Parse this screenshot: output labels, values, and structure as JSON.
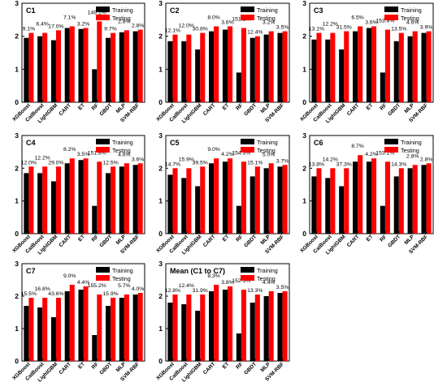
{
  "colors": {
    "training": "#000000",
    "testing": "#ff0000"
  },
  "chart_data": [
    {
      "type": "bar",
      "title": "C1",
      "categories": [
        "XGBoost",
        "CatBoost",
        "LightGBM",
        "CART",
        "ET",
        "RF",
        "GBDT",
        "MLP",
        "SVM-RBF"
      ],
      "series": [
        {
          "name": "Training",
          "values": [
            1.95,
            2.0,
            1.88,
            2.25,
            2.22,
            1.0,
            1.95,
            2.12,
            2.15
          ]
        },
        {
          "name": "Testing",
          "values": [
            2.1,
            2.1,
            2.18,
            2.3,
            2.25,
            2.45,
            2.1,
            2.18,
            2.2
          ]
        }
      ],
      "labels": [
        "9.1%",
        "6.4%",
        "17.0%",
        "7.1%",
        "3.2%",
        "149.1%",
        "9.7%",
        "2.8%",
        "2.8%"
      ],
      "ylim": [
        0,
        3
      ],
      "yticks": [
        0,
        1,
        2,
        3
      ],
      "legend": "top-right"
    },
    {
      "type": "bar",
      "title": "C2",
      "categories": [
        "XGBoost",
        "CatBoost",
        "LightGBM",
        "CART",
        "ET",
        "RF",
        "GBDT",
        "MLP",
        "SVM-RBF"
      ],
      "series": [
        {
          "name": "Training",
          "values": [
            1.85,
            1.85,
            1.6,
            2.15,
            2.2,
            0.9,
            1.95,
            2.05,
            2.1
          ]
        },
        {
          "name": "Testing",
          "values": [
            2.05,
            2.05,
            2.1,
            2.3,
            2.3,
            2.25,
            2.0,
            2.15,
            2.15
          ]
        }
      ],
      "labels": [
        "12.1%",
        "12.0%",
        "30.8%",
        "8.0%",
        "3.6%",
        "151.1%",
        "12.4%",
        "3.2%",
        "3.5%"
      ],
      "ylim": [
        0,
        3
      ],
      "yticks": [
        0,
        1,
        2,
        3
      ],
      "legend": "top-right"
    },
    {
      "type": "bar",
      "title": "C3",
      "categories": [
        "XGBoost",
        "CatBoost",
        "LightGBM",
        "CART",
        "ET",
        "RF",
        "GBDT",
        "MLP",
        "SVM-RBF"
      ],
      "series": [
        {
          "name": "Training",
          "values": [
            1.9,
            1.9,
            1.6,
            2.15,
            2.25,
            0.9,
            1.85,
            2.0,
            2.1
          ]
        },
        {
          "name": "Testing",
          "values": [
            2.1,
            2.1,
            2.15,
            2.3,
            2.3,
            2.2,
            2.1,
            2.15,
            2.15
          ]
        }
      ],
      "labels": [
        "13.1%",
        "12.2%",
        "31.5%",
        "6.5%",
        "3.6%",
        "153.8%",
        "13.5%",
        "4.6%",
        "3.9%"
      ],
      "ylim": [
        0,
        3
      ],
      "yticks": [
        0,
        1,
        2,
        3
      ],
      "legend": "top-right"
    },
    {
      "type": "bar",
      "title": "C4",
      "categories": [
        "XGBoost",
        "CatBoost",
        "LightGBM",
        "CART",
        "ET",
        "RF",
        "GBDT",
        "MLP",
        "SVM-RBF"
      ],
      "series": [
        {
          "name": "Training",
          "values": [
            1.85,
            1.85,
            1.6,
            2.15,
            2.25,
            0.85,
            1.85,
            2.05,
            2.1
          ]
        },
        {
          "name": "Testing",
          "values": [
            2.05,
            2.05,
            2.05,
            2.3,
            2.3,
            2.2,
            2.05,
            2.15,
            2.15
          ]
        }
      ],
      "labels": [
        "12.0%",
        "12.2%",
        "29.0%",
        "8.2%",
        "3.5%",
        "151.8%",
        "12.5%",
        "4.6%",
        "3.6%"
      ],
      "ylim": [
        0,
        3
      ],
      "yticks": [
        0,
        1,
        2,
        3
      ],
      "legend": "top-right"
    },
    {
      "type": "bar",
      "title": "C5",
      "categories": [
        "XGBoost",
        "CatBoost",
        "LightGBM",
        "CART",
        "ET",
        "RF",
        "GBDT",
        "MLP",
        "SVM-RBF"
      ],
      "series": [
        {
          "name": "Training",
          "values": [
            1.8,
            1.7,
            1.45,
            2.15,
            2.2,
            0.85,
            1.75,
            2.0,
            2.05
          ]
        },
        {
          "name": "Testing",
          "values": [
            2.0,
            2.0,
            2.05,
            2.3,
            2.3,
            2.2,
            2.05,
            2.15,
            2.1
          ]
        }
      ],
      "labels": [
        "14.7%",
        "15.9%",
        "39.5%",
        "9.0%",
        "4.2%",
        "154.3%",
        "15.1%",
        "5.0%",
        "3.7%"
      ],
      "ylim": [
        0,
        3
      ],
      "yticks": [
        0,
        1,
        2,
        3
      ],
      "legend": "top-right"
    },
    {
      "type": "bar",
      "title": "C6",
      "categories": [
        "XGBoost",
        "CatBoost",
        "LightGBM",
        "CART",
        "ET",
        "RF",
        "GBDT",
        "MLP",
        "SVM-RBF"
      ],
      "series": [
        {
          "name": "Training",
          "values": [
            1.75,
            1.7,
            1.45,
            2.2,
            2.2,
            0.85,
            1.75,
            2.0,
            2.1
          ]
        },
        {
          "name": "Testing",
          "values": [
            2.0,
            2.0,
            2.0,
            2.4,
            2.3,
            2.2,
            2.0,
            2.1,
            2.15
          ]
        }
      ],
      "labels": [
        "13.8%",
        "14.2%",
        "37.3%",
        "8.7%",
        "4.2%",
        "153.1%",
        "14.3%",
        "2.8%",
        "2.8%"
      ],
      "ylim": [
        0,
        3
      ],
      "yticks": [
        0,
        1,
        2,
        3
      ],
      "legend": "top-right"
    },
    {
      "type": "bar",
      "title": "C7",
      "categories": [
        "XGBoost",
        "CatBoost",
        "LightGBM",
        "CART",
        "ET",
        "RF",
        "GBDT",
        "MLP",
        "SVM-RBF"
      ],
      "series": [
        {
          "name": "Training",
          "values": [
            1.7,
            1.65,
            1.35,
            2.15,
            2.2,
            0.8,
            1.7,
            1.95,
            2.05
          ]
        },
        {
          "name": "Testing",
          "values": [
            1.95,
            1.95,
            1.95,
            2.35,
            2.3,
            2.05,
            1.95,
            2.05,
            2.1
          ]
        }
      ],
      "labels": [
        "15.5%",
        "16.8%",
        "43.6%",
        "9.0%",
        "4.4%",
        "155.2%",
        "15.9%",
        "5.7%",
        "4.0%"
      ],
      "ylim": [
        0,
        3
      ],
      "yticks": [
        0,
        1,
        2,
        3
      ],
      "legend": "top-right"
    },
    {
      "type": "bar",
      "title": "Mean (C1 to C7)",
      "categories": [
        "XGBoost",
        "CatBoost",
        "LightGBM",
        "CART",
        "ET",
        "RF",
        "GBDT",
        "MLP",
        "SVM-RBF"
      ],
      "series": [
        {
          "name": "Training",
          "values": [
            1.8,
            1.75,
            1.55,
            2.15,
            2.2,
            0.85,
            1.8,
            2.0,
            2.1
          ]
        },
        {
          "name": "Testing",
          "values": [
            2.05,
            2.05,
            2.05,
            2.35,
            2.3,
            2.2,
            2.05,
            2.15,
            2.15
          ]
        }
      ],
      "labels": [
        "12.8%",
        "12.4%",
        "31.9%",
        "8.3%",
        "3.8%",
        "152.3%",
        "13.3%",
        "4.4%",
        "3.5%"
      ],
      "ylim": [
        0,
        3
      ],
      "yticks": [
        0,
        1,
        2,
        3
      ],
      "legend": "top-right"
    }
  ]
}
